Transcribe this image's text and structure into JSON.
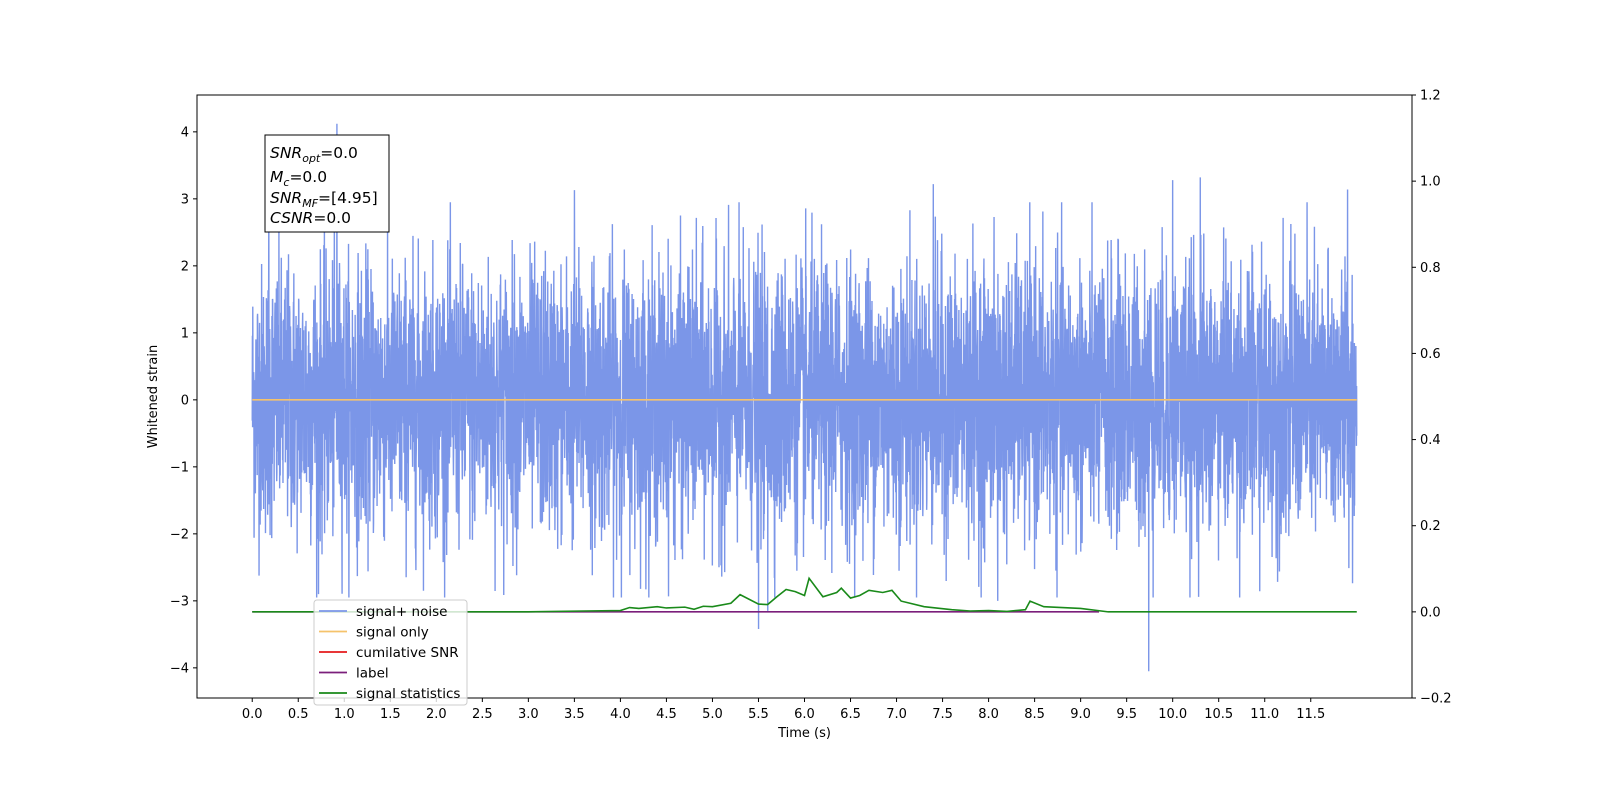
{
  "chart_data": {
    "type": "line",
    "xlabel": "Time (s)",
    "ylabel": "Whitened strain",
    "x_ticks": [
      "0.0",
      "0.5",
      "1.0",
      "1.5",
      "2.0",
      "2.5",
      "3.0",
      "3.5",
      "4.0",
      "4.5",
      "5.0",
      "5.5",
      "6.0",
      "6.5",
      "7.0",
      "7.5",
      "8.0",
      "8.5",
      "9.0",
      "9.5",
      "10.0",
      "10.5",
      "11.0",
      "11.5"
    ],
    "xlim": [
      -0.6,
      12.6
    ],
    "ylim_left": [
      -4.45,
      4.55
    ],
    "left_ticks": [
      {
        "value": 4,
        "label": "4"
      },
      {
        "value": 3,
        "label": "3"
      },
      {
        "value": 2,
        "label": "2"
      },
      {
        "value": 1,
        "label": "1"
      },
      {
        "value": 0,
        "label": "0"
      },
      {
        "value": -1,
        "label": "−1"
      },
      {
        "value": -2,
        "label": "−2"
      },
      {
        "value": -3,
        "label": "−3"
      },
      {
        "value": -4,
        "label": "−4"
      }
    ],
    "ylim_right": [
      -0.2,
      1.2
    ],
    "right_ticks": [
      "1.2",
      "1.0",
      "0.8",
      "0.6",
      "0.4",
      "0.2",
      "0.0",
      "−0.2"
    ],
    "grid": false,
    "legend_placement": "lower-left",
    "annotation": {
      "lines": [
        {
          "name": "SNR",
          "sub": "opt",
          "value": "=0.0"
        },
        {
          "name": "M",
          "sub": "c",
          "value": "=0.0"
        },
        {
          "name": "SNR",
          "sub": "MF",
          "value": "=[4.95]"
        },
        {
          "name": "CSNR",
          "sub": "",
          "value": "=0.0"
        }
      ]
    },
    "series": [
      {
        "name": "signal+ noise",
        "color": "#7b96e8",
        "axis": "left",
        "x_range": [
          0.0,
          12.0
        ],
        "description_amplitude": 1.0,
        "spikes": [
          {
            "x": 0.92,
            "y": 4.12
          },
          {
            "x": 0.18,
            "y": 3.25
          },
          {
            "x": 3.5,
            "y": 3.13
          },
          {
            "x": 5.5,
            "y": -3.42
          },
          {
            "x": 5.6,
            "y": -3.15
          },
          {
            "x": 9.74,
            "y": -4.05
          },
          {
            "x": 10.3,
            "y": 3.32
          },
          {
            "x": 10.0,
            "y": 3.28
          },
          {
            "x": 7.4,
            "y": 3.22
          },
          {
            "x": 11.9,
            "y": 3.14
          },
          {
            "x": 0.72,
            "y": -2.9
          },
          {
            "x": 8.1,
            "y": -3.0
          }
        ]
      },
      {
        "name": "signal only",
        "color": "#f5c36b",
        "axis": "left",
        "x": [
          0.0,
          12.0
        ],
        "y": [
          0.0,
          0.0
        ]
      },
      {
        "name": "cumilative SNR",
        "color": "#e41a1c",
        "axis": "right",
        "x": [],
        "y": []
      },
      {
        "name": "label",
        "color": "#7b1f7b",
        "axis": "right",
        "x": [
          0.0,
          9.2
        ],
        "y": [
          0.0,
          0.0
        ]
      },
      {
        "name": "signal statistics",
        "color": "#1a8a1a",
        "axis": "right",
        "x": [
          0.0,
          3.0,
          3.6,
          4.0,
          4.1,
          4.2,
          4.4,
          4.5,
          4.7,
          4.8,
          4.9,
          5.0,
          5.2,
          5.3,
          5.5,
          5.6,
          5.7,
          5.8,
          5.9,
          6.0,
          6.05,
          6.2,
          6.35,
          6.4,
          6.5,
          6.6,
          6.7,
          6.85,
          6.95,
          7.05,
          7.3,
          7.6,
          7.8,
          8.0,
          8.2,
          8.4,
          8.45,
          8.6,
          8.8,
          9.0,
          9.3,
          12.0
        ],
        "y": [
          0.0,
          0.0,
          0.002,
          0.003,
          0.01,
          0.008,
          0.012,
          0.009,
          0.011,
          0.006,
          0.013,
          0.012,
          0.02,
          0.04,
          0.018,
          0.017,
          0.035,
          0.052,
          0.047,
          0.038,
          0.078,
          0.035,
          0.045,
          0.055,
          0.032,
          0.038,
          0.05,
          0.045,
          0.05,
          0.025,
          0.012,
          0.005,
          0.002,
          0.003,
          0.001,
          0.005,
          0.025,
          0.012,
          0.01,
          0.008,
          0.0,
          0.0
        ]
      }
    ]
  }
}
